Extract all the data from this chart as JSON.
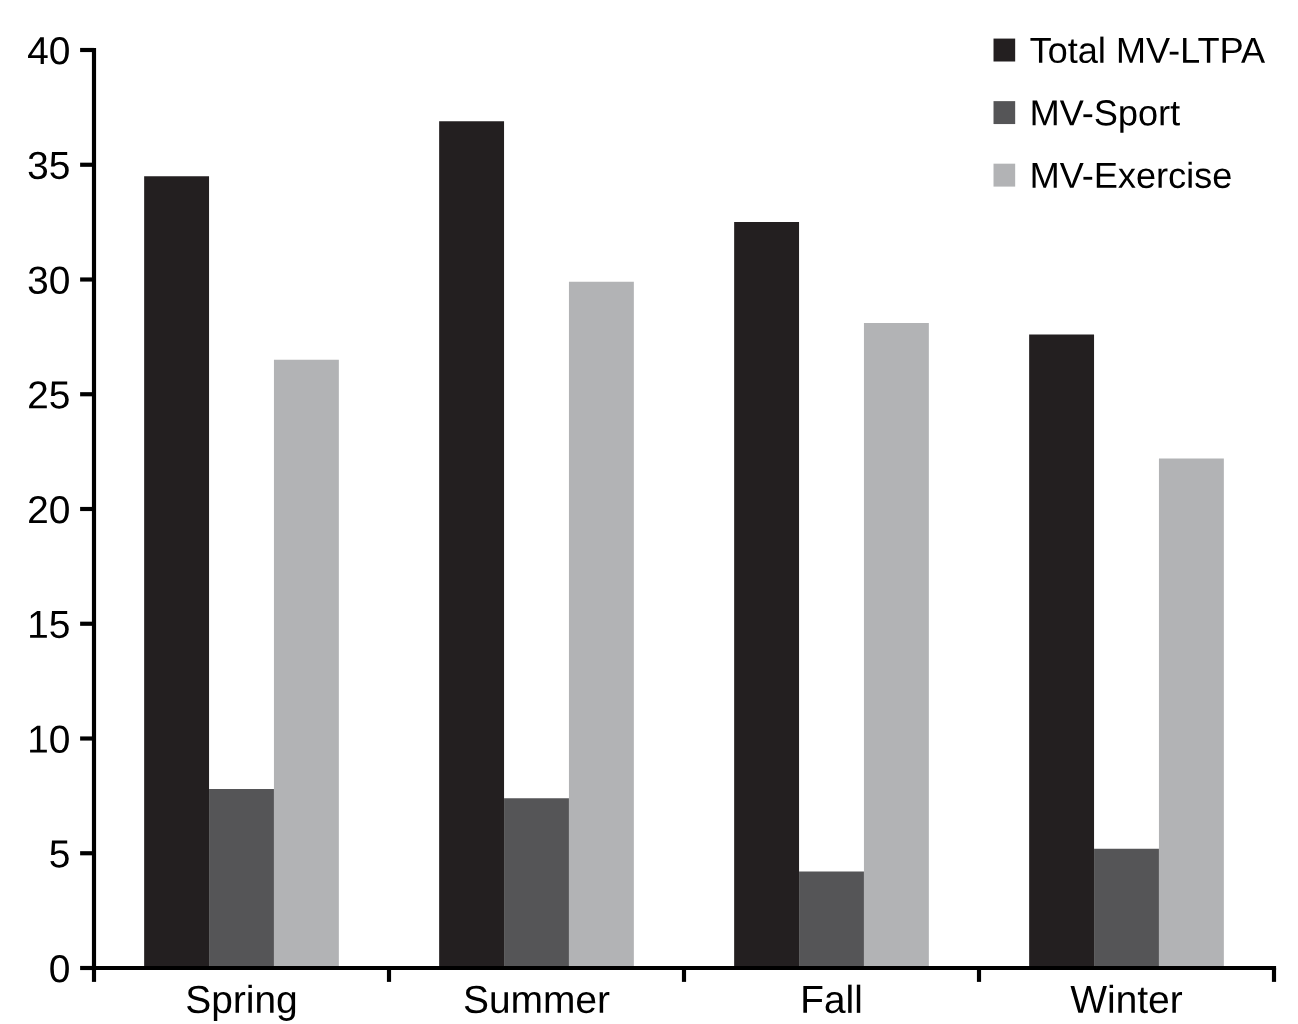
{
  "chart_data": {
    "type": "bar",
    "categories": [
      "Spring",
      "Summer",
      "Fall",
      "Winter"
    ],
    "series": [
      {
        "name": "Total MV-LTPA",
        "color": "#231f20",
        "values": [
          34.5,
          36.9,
          32.5,
          27.6
        ]
      },
      {
        "name": "MV-Sport",
        "color": "#555557",
        "values": [
          7.8,
          7.4,
          4.2,
          5.2
        ]
      },
      {
        "name": "MV-Exercise",
        "color": "#b2b3b5",
        "values": [
          26.5,
          29.9,
          28.1,
          22.2
        ]
      }
    ],
    "ylim": [
      0,
      40
    ],
    "yticks": [
      0,
      5,
      10,
      15,
      20,
      25,
      30,
      35,
      40
    ],
    "grid": false,
    "legend": "top right"
  }
}
